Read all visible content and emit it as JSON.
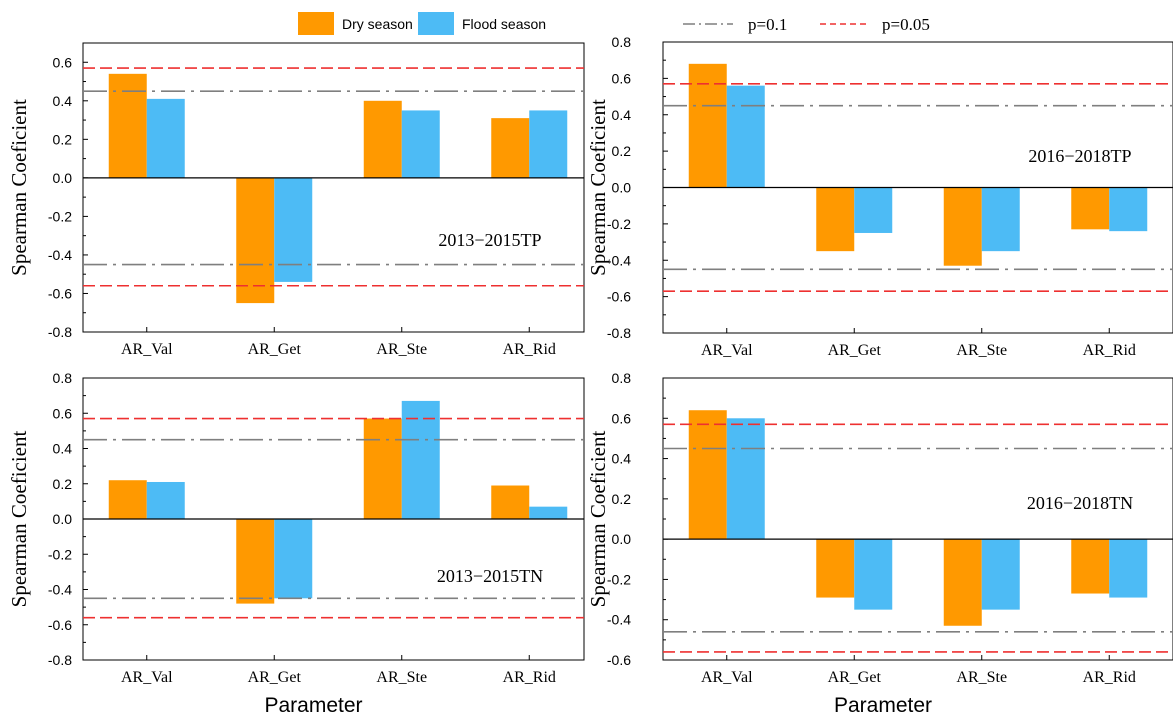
{
  "legend": {
    "series": [
      {
        "name": "Dry season",
        "color": "#ff9900"
      },
      {
        "name": "Flood season",
        "color": "#4dbbf5"
      }
    ],
    "thresholds": [
      {
        "name": "p=0.1",
        "color": "#7f7f7f",
        "style": "dash-dot"
      },
      {
        "name": "p=0.05",
        "color": "#ee3030",
        "style": "dashed"
      }
    ]
  },
  "colors": {
    "dry": "#ff9900",
    "flood": "#4dbbf5",
    "p01": "#7f7f7f",
    "p005": "#ee3030"
  },
  "chart_data": [
    {
      "type": "bar",
      "panel": "top-left",
      "annotation": "2013−2015TP",
      "categories": [
        "AR_Val",
        "AR_Get",
        "AR_Ste",
        "AR_Rid"
      ],
      "series": [
        {
          "name": "Dry season",
          "values": [
            0.54,
            -0.65,
            0.4,
            0.31
          ]
        },
        {
          "name": "Flood season",
          "values": [
            0.41,
            -0.54,
            0.35,
            0.35
          ]
        }
      ],
      "thresholds": {
        "p=0.1": [
          0.45,
          -0.45
        ],
        "p=0.05": [
          0.57,
          -0.56
        ]
      },
      "ylabel": "Spearman Coeficient",
      "xlabel": "",
      "ylim": [
        -0.8,
        0.7
      ],
      "yticks": [
        -0.8,
        -0.6,
        -0.4,
        -0.2,
        0.0,
        0.2,
        0.4,
        0.6
      ],
      "ytick_labels": [
        "-0.8",
        "-0.6",
        "-0.4",
        "-0.2",
        "0.0",
        "0.2",
        "0.4",
        "0.6"
      ]
    },
    {
      "type": "bar",
      "panel": "top-right",
      "annotation": "2016−2018TP",
      "categories": [
        "AR_Val",
        "AR_Get",
        "AR_Ste",
        "AR_Rid"
      ],
      "series": [
        {
          "name": "Dry season",
          "values": [
            0.68,
            -0.35,
            -0.43,
            -0.23
          ]
        },
        {
          "name": "Flood season",
          "values": [
            0.56,
            -0.25,
            -0.35,
            -0.24
          ]
        }
      ],
      "thresholds": {
        "p=0.1": [
          0.45,
          -0.45
        ],
        "p=0.05": [
          0.57,
          -0.57
        ]
      },
      "ylabel": "Spearman Coeficient",
      "xlabel": "",
      "ylim": [
        -0.8,
        0.8
      ],
      "yticks": [
        -0.8,
        -0.6,
        -0.4,
        -0.2,
        0.0,
        0.2,
        0.4,
        0.6,
        0.8
      ],
      "ytick_labels": [
        "-0.8",
        "-0.6",
        "-0.4",
        "-0.2",
        "0.0",
        "0.2",
        "0.4",
        "0.6",
        "0.8"
      ]
    },
    {
      "type": "bar",
      "panel": "bottom-left",
      "annotation": "2013−2015TN",
      "categories": [
        "AR_Val",
        "AR_Get",
        "AR_Ste",
        "AR_Rid"
      ],
      "series": [
        {
          "name": "Dry season",
          "values": [
            0.22,
            -0.48,
            0.57,
            0.19
          ]
        },
        {
          "name": "Flood season",
          "values": [
            0.21,
            -0.45,
            0.67,
            0.07
          ]
        }
      ],
      "thresholds": {
        "p=0.1": [
          0.45,
          -0.45
        ],
        "p=0.05": [
          0.57,
          -0.56
        ]
      },
      "ylabel": "Spearman Coeficient",
      "xlabel": "Parameter",
      "ylim": [
        -0.8,
        0.8
      ],
      "yticks": [
        -0.8,
        -0.6,
        -0.4,
        -0.2,
        0.0,
        0.2,
        0.4,
        0.6,
        0.8
      ],
      "ytick_labels": [
        "-0.8",
        "-0.6",
        "-0.4",
        "-0.2",
        "0.0",
        "0.2",
        "0.4",
        "0.6",
        "0.8"
      ]
    },
    {
      "type": "bar",
      "panel": "bottom-right",
      "annotation": "2016−2018TN",
      "categories": [
        "AR_Val",
        "AR_Get",
        "AR_Ste",
        "AR_Rid"
      ],
      "series": [
        {
          "name": "Dry season",
          "values": [
            0.64,
            -0.29,
            -0.43,
            -0.27
          ]
        },
        {
          "name": "Flood season",
          "values": [
            0.6,
            -0.35,
            -0.35,
            -0.29
          ]
        }
      ],
      "thresholds": {
        "p=0.1": [
          0.45,
          -0.46
        ],
        "p=0.05": [
          0.57,
          -0.56
        ]
      },
      "ylabel": "Spearman Coeficient",
      "xlabel": "Parameter",
      "ylim": [
        -0.6,
        0.8
      ],
      "yticks": [
        -0.6,
        -0.4,
        -0.2,
        0.0,
        0.2,
        0.4,
        0.6,
        0.8
      ],
      "ytick_labels": [
        "-0.6",
        "-0.4",
        "-0.2",
        "0.0",
        "0.2",
        "0.4",
        "0.6",
        "0.8"
      ]
    }
  ]
}
